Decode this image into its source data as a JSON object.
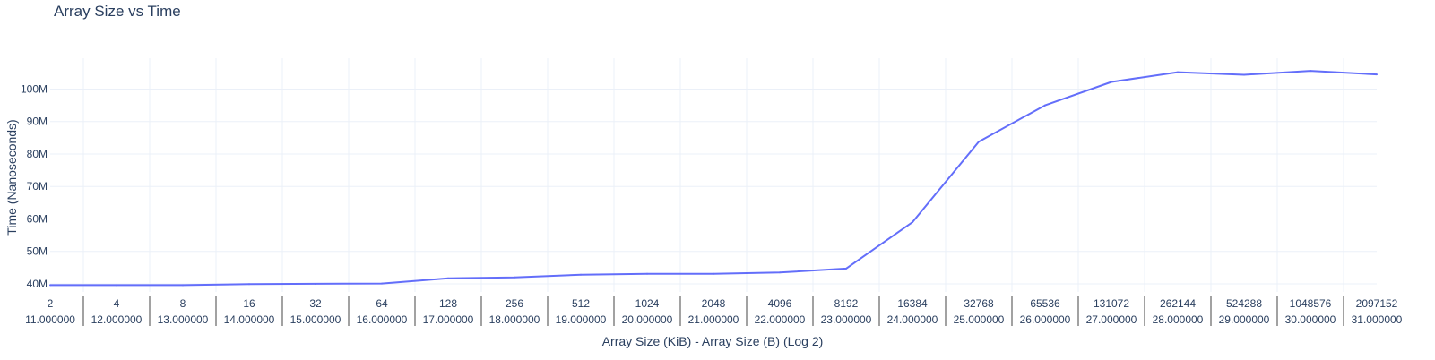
{
  "chart_data": {
    "type": "line",
    "title": "Array Size vs Time",
    "xlabel": "Array Size (KiB) - Array Size (B) (Log 2)",
    "ylabel": "Time (Nanoseconds)",
    "ylim": [
      37500000,
      109500000
    ],
    "y_ticks": [
      40000000,
      50000000,
      60000000,
      70000000,
      80000000,
      90000000,
      100000000
    ],
    "y_tick_labels": [
      "40M",
      "50M",
      "60M",
      "70M",
      "80M",
      "90M",
      "100M"
    ],
    "x_kib": [
      "2",
      "4",
      "8",
      "16",
      "32",
      "64",
      "128",
      "256",
      "512",
      "1024",
      "2048",
      "4096",
      "8192",
      "16384",
      "32768",
      "65536",
      "131072",
      "262144",
      "524288",
      "1048576",
      "2097152"
    ],
    "x_log2": [
      "11.000000",
      "12.000000",
      "13.000000",
      "14.000000",
      "15.000000",
      "16.000000",
      "17.000000",
      "18.000000",
      "19.000000",
      "20.000000",
      "21.000000",
      "22.000000",
      "23.000000",
      "24.000000",
      "25.000000",
      "26.000000",
      "27.000000",
      "28.000000",
      "29.000000",
      "30.000000",
      "31.000000"
    ],
    "series": [
      {
        "color": "#636efa",
        "values": [
          39600000,
          39600000,
          39600000,
          39900000,
          40000000,
          40100000,
          41700000,
          42000000,
          42800000,
          43100000,
          43100000,
          43500000,
          44700000,
          59000000,
          83800000,
          95000000,
          102200000,
          105200000,
          104400000,
          105600000,
          104500000
        ]
      }
    ],
    "grid": true,
    "legend": "none"
  }
}
